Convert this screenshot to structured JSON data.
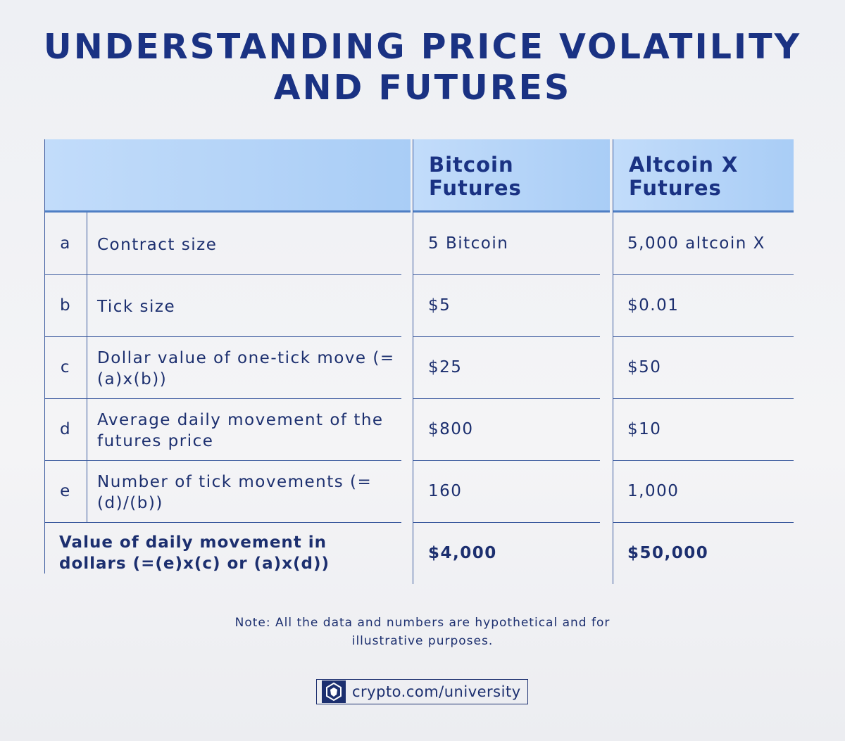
{
  "header": {
    "title_lines": [
      "UNDERSTANDING PRICE VOLATILITY",
      "AND FUTURES"
    ]
  },
  "table": {
    "columns": [
      "Bitcoin Futures",
      "Altcoin X Futures"
    ],
    "rows": [
      [
        "a",
        "Contract size",
        "5 Bitcoin",
        "5,000 altcoin X"
      ],
      [
        "b",
        "Tick size",
        "$5",
        "$0.01"
      ],
      [
        "c",
        "Dollar value of one-tick move (=(a)x(b))",
        "$25",
        "$50"
      ],
      [
        "d",
        "Average daily movement of the futures price",
        "$800",
        "$10"
      ],
      [
        "e",
        "Number of tick movements (=(d)/(b))",
        "160",
        "1,000"
      ]
    ],
    "total": [
      "Value of daily movement in dollars (=(e)x(c) or (a)x(d))",
      "$4,000",
      "$50,000"
    ]
  },
  "note": "Note: All the data and numbers are hypothetical and for illustrative purposes.",
  "footer": {
    "link": "crypto.com/university"
  }
}
